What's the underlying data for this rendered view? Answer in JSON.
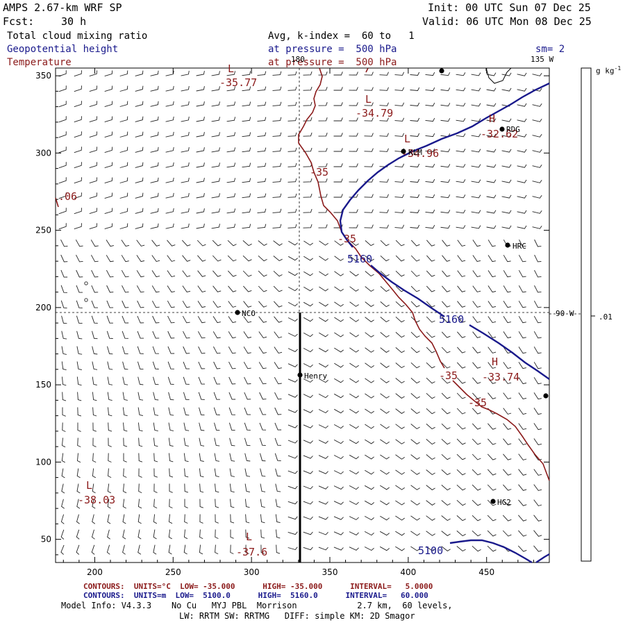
{
  "header": {
    "model": "AMPS 2.67-km WRF SP",
    "fcst_label": "Fcst:",
    "fcst_value": "30 h",
    "init": "Init: 00 UTC Sun 07 Dec 25",
    "valid": "Valid: 06 UTC Mon 08 Dec 25",
    "field1": "Total cloud mixing ratio",
    "field1_desc": "Avg, k-index =  60 to   1",
    "field2": "Geopotential height",
    "field2_desc": "at pressure =  500 hPa",
    "field3": "Temperature",
    "field3_desc": "at pressure =  500 hPa",
    "smoothing": "sm= 2"
  },
  "colorbar": {
    "units": "g kg",
    "units_exp": "-1",
    "value": ".01"
  },
  "map": {
    "lon_labels": [
      {
        "text": "180"
      },
      {
        "text": "135 W"
      },
      {
        "text": "90 W"
      }
    ],
    "stations": [
      {
        "name": "NCO"
      },
      {
        "name": "Henry"
      },
      {
        "name": "KLM"
      },
      {
        "name": "RDG"
      },
      {
        "name": "HRC"
      },
      {
        "name": "HG2"
      }
    ],
    "temp_labels": [
      {
        "text": "L"
      },
      {
        "text": "-35.77"
      },
      {
        "text": "L"
      },
      {
        "text": "-34.79"
      },
      {
        "text": "H"
      },
      {
        "text": "-32.62"
      },
      {
        "text": "L"
      },
      {
        "text": "-34.96"
      },
      {
        "text": "-35"
      },
      {
        "text": "-35"
      },
      {
        "text": "-35"
      },
      {
        "text": "-35"
      },
      {
        "text": "H"
      },
      {
        "text": "-33.74"
      },
      {
        "text": "L"
      },
      {
        "text": "-38.03"
      },
      {
        "text": "L"
      },
      {
        "text": "-37.6"
      },
      {
        "text": ".06"
      }
    ],
    "height_labels": [
      {
        "text": "5160"
      },
      {
        "text": "5160"
      },
      {
        "text": "5100"
      }
    ]
  },
  "chart_data": {
    "type": "map",
    "x_ticks": [
      200,
      250,
      300,
      350,
      400,
      450
    ],
    "y_ticks": [
      50,
      100,
      150,
      200,
      250,
      300,
      350
    ],
    "xlim": [
      175,
      490
    ],
    "ylim": [
      35,
      355
    ],
    "cross_section_x": 335,
    "cross_section_y": [
      35,
      195
    ],
    "height_contours_m": [
      5100,
      5160
    ],
    "temperature_contours_c": [
      -35
    ],
    "temperature_extrema": [
      {
        "type": "L",
        "value": -35.77
      },
      {
        "type": "L",
        "value": -34.79
      },
      {
        "type": "H",
        "value": -32.62
      },
      {
        "type": "L",
        "value": -34.96
      },
      {
        "type": "H",
        "value": -33.74
      },
      {
        "type": "L",
        "value": -38.03
      },
      {
        "type": "L",
        "value": -37.6
      }
    ]
  },
  "footer": {
    "red_contours": "CONTOURS:  UNITS=°C  LOW= -35.000      HIGH= -35.000      INTERVAL=   5.0000",
    "blue_contours": "CONTOURS:  UNITS=m  LOW=  5100.0      HIGH=  5160.0      INTERVAL=   60.000",
    "model_info": "Model Info: V4.3.3    No Cu   MYJ PBL  Morrison            2.7 km,  60 levels,",
    "model_info2": "LW: RRTM SW: RRTMG   DIFF: simple KM: 2D Smagor"
  },
  "colors": {
    "height": "#1a1a8c",
    "temperature": "#8b1a1a",
    "wind": "#000000"
  }
}
